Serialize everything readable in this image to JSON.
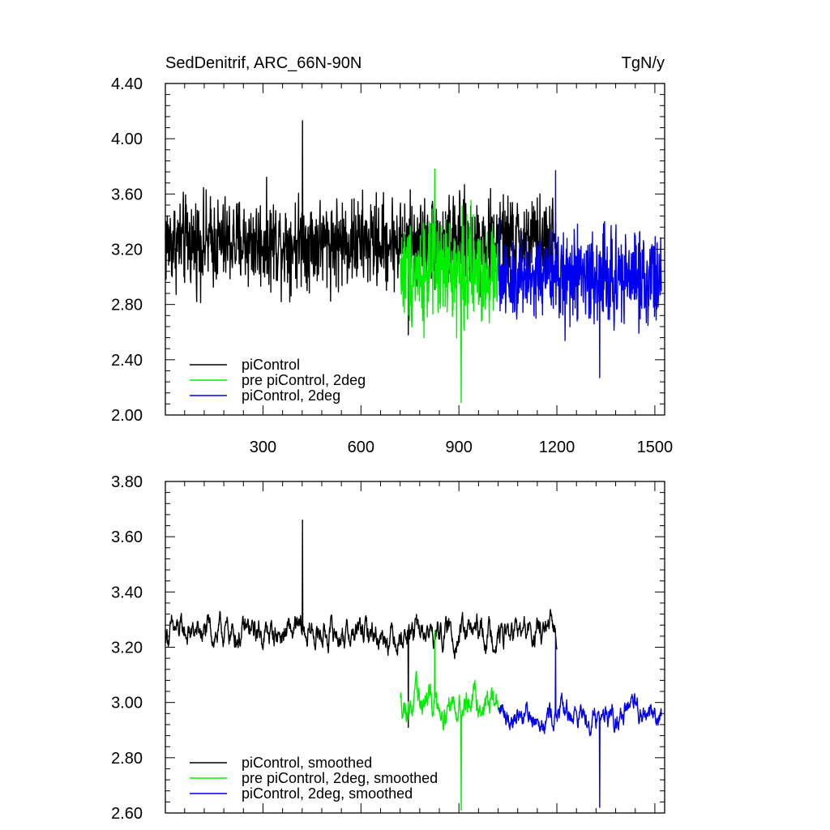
{
  "chart_data": [
    {
      "type": "line",
      "title": "SedDenitrif, ARC_66N-90N",
      "units": "TgN/y",
      "xlim": [
        1,
        1530
      ],
      "ylim": [
        2.0,
        4.4
      ],
      "xticks": [
        300,
        600,
        900,
        1200,
        1500
      ],
      "yticks": [
        2.0,
        2.4,
        2.8,
        3.2,
        3.6,
        4.0,
        4.4
      ],
      "xtick_labels": [
        "300",
        "600",
        "900",
        "1200",
        "1500"
      ],
      "ytick_labels": [
        "2.00",
        "2.40",
        "2.80",
        "3.20",
        "3.60",
        "4.00",
        "4.40"
      ],
      "legend_placement": "lower-left",
      "series": [
        {
          "name": "piControl",
          "color": "#000000",
          "x_range": [
            1,
            1200
          ],
          "mean": 3.25,
          "noise": 0.17,
          "peak_high": 4.13,
          "peak_low": 2.58
        },
        {
          "name": "pre piControl, 2deg",
          "color": "#00ee00",
          "x_range": [
            721,
            1020
          ],
          "mean": 3.05,
          "noise": 0.2,
          "peak_high": 3.78,
          "peak_low": 2.09
        },
        {
          "name": "piControl, 2deg",
          "color": "#0000ee",
          "x_range": [
            1021,
            1520
          ],
          "mean": 3.0,
          "noise": 0.18,
          "peak_high": 3.77,
          "peak_low": 2.27
        }
      ]
    },
    {
      "type": "line",
      "title": "",
      "xlim": [
        1,
        1530
      ],
      "ylim": [
        2.6,
        3.8
      ],
      "xticks": [
        300,
        600,
        900,
        1200,
        1500
      ],
      "yticks": [
        2.6,
        2.8,
        3.0,
        3.2,
        3.4,
        3.6,
        3.8
      ],
      "xtick_labels": [],
      "ytick_labels": [
        "2.60",
        "2.80",
        "3.00",
        "3.20",
        "3.40",
        "3.60",
        "3.80"
      ],
      "legend_placement": "lower-left",
      "series": [
        {
          "name": "piControl, smoothed",
          "color": "#000000",
          "x_range": [
            1,
            1200
          ],
          "mean": 3.25,
          "noise": 0.09,
          "peak_high": 3.66,
          "peak_low": 2.91
        },
        {
          "name": "pre piControl, 2deg, smoothed",
          "color": "#00ee00",
          "x_range": [
            721,
            1020
          ],
          "mean": 3.0,
          "noise": 0.1,
          "peak_high": 3.26,
          "peak_low": 2.61
        },
        {
          "name": "piControl, 2deg, smoothed",
          "color": "#0000ee",
          "x_range": [
            1021,
            1520
          ],
          "mean": 2.96,
          "noise": 0.08,
          "peak_high": 3.24,
          "peak_low": 2.62
        }
      ]
    }
  ]
}
